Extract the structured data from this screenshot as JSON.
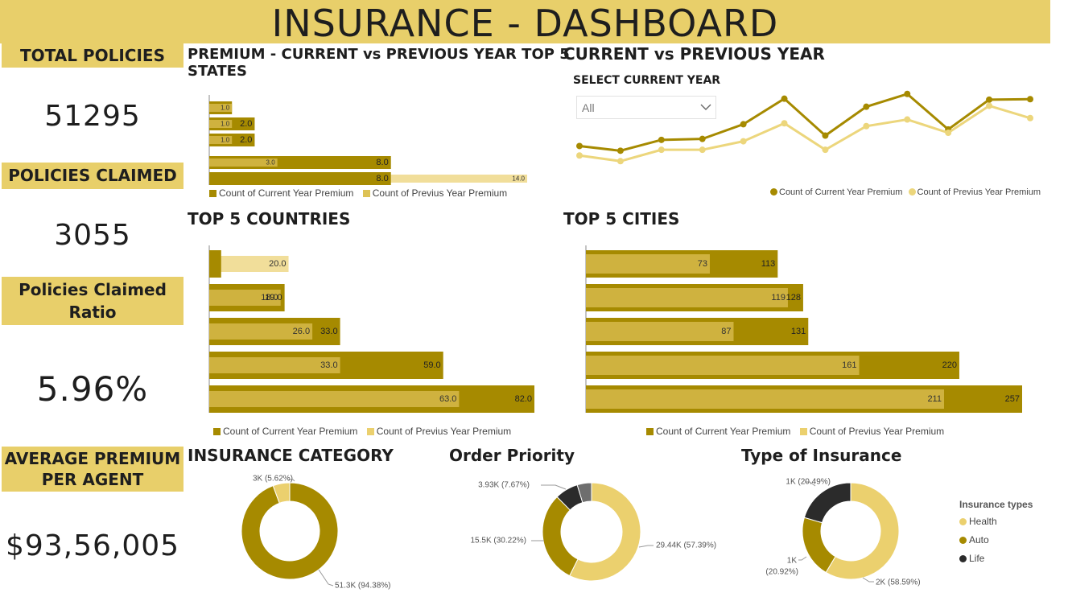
{
  "header": {
    "title": "INSURANCE - DASHBOARD"
  },
  "kpis": {
    "total_policies": {
      "label": "TOTAL POLICIES",
      "value": "51295"
    },
    "policies_claimed": {
      "label": "POLICIES CLAIMED",
      "value": "3055"
    },
    "claimed_ratio": {
      "label_line1": "Policies Claimed",
      "label_line2": "Ratio",
      "value": "5.96%"
    },
    "avg_premium": {
      "label_line1": "AVERAGE PREMIUM",
      "label_line2": "PER AGENT",
      "value": "$93,56,005"
    }
  },
  "sections": {
    "top5_states_title_1": "PREMIUM - CURRENT vs PREVIOUS YEAR TOP 5",
    "top5_states_title_2": "STATES",
    "line_title": "CURRENT vs PREVIOUS YEAR",
    "countries_title": "TOP 5 COUNTRIES",
    "cities_title": "TOP 5 CITIES",
    "category_title": "INSURANCE CATEGORY",
    "priority_title": "Order Priority",
    "type_title": "Type of Insurance"
  },
  "slicer": {
    "label": "SELECT CURRENT YEAR",
    "value": "All"
  },
  "legends": {
    "current": "Count of Current Year Premium",
    "previous": "Count of Previus Year Premium",
    "previous_line": "Count of Previus  Year Premium",
    "types_header": "Insurance types",
    "types": [
      "Health",
      "Auto",
      "Life"
    ]
  },
  "colors": {
    "title_bg": "#e8cf6a",
    "current": "#a68a00",
    "previous_in_bar": "#cfb23f",
    "previous": "#f1de9a",
    "line_current": "#a68a00",
    "line_previous": "#ecd67c",
    "health": "#ebd06e",
    "auto": "#a68a00",
    "life": "#2b2b2b",
    "other": "#6e6e6e"
  },
  "chart_data": [
    {
      "id": "top5_states",
      "type": "bar",
      "orientation": "horizontal",
      "series": [
        {
          "name": "Count of Current Year Premium",
          "values": [
            1.0,
            2.0,
            2.0,
            8.0,
            8.0
          ]
        },
        {
          "name": "Count of Previus Year Premium",
          "values": [
            1.0,
            1.0,
            1.0,
            3.0,
            14.0
          ]
        }
      ],
      "current_labels": [
        "",
        "2.0",
        "2.0",
        "8.0",
        "8.0"
      ],
      "previous_labels": [
        "1.0",
        "1.0",
        "1.0",
        "3.0",
        "14.0"
      ],
      "xlim": [
        0,
        14
      ]
    },
    {
      "id": "current_vs_previous",
      "type": "line",
      "series": [
        {
          "name": "Count of Current Year Premium",
          "values": [
            4.0,
            3.0,
            5.3,
            5.5,
            8.6,
            14.0,
            6.2,
            12.3,
            15.0,
            7.5,
            13.8,
            13.9
          ]
        },
        {
          "name": "Count of Previus  Year Premium",
          "values": [
            2.0,
            0.8,
            3.2,
            3.2,
            5.0,
            8.8,
            3.2,
            8.2,
            9.6,
            6.8,
            12.5,
            9.9
          ]
        }
      ],
      "ylim": [
        0,
        17
      ]
    },
    {
      "id": "top5_countries",
      "type": "bar",
      "orientation": "horizontal",
      "series": [
        {
          "name": "Count of Current Year Premium",
          "values": [
            3.0,
            19.0,
            33.0,
            59.0,
            82.0
          ]
        },
        {
          "name": "Count of Previus Year Premium",
          "values": [
            20.0,
            18.0,
            26.0,
            33.0,
            63.0
          ]
        }
      ],
      "current_labels": [
        "",
        "19.0",
        "33.0",
        "59.0",
        "82.0"
      ],
      "previous_labels": [
        "20.0",
        "18.0",
        "26.0",
        "33.0",
        "63.0"
      ],
      "xlim": [
        0,
        82
      ]
    },
    {
      "id": "top5_cities",
      "type": "bar",
      "orientation": "horizontal",
      "series": [
        {
          "name": "Count of Current Year Premium",
          "values": [
            113,
            128,
            131,
            220,
            257
          ]
        },
        {
          "name": "Count of Previus Year Premium",
          "values": [
            73,
            119,
            87,
            161,
            211
          ]
        }
      ],
      "xlim": [
        0,
        257
      ]
    },
    {
      "id": "insurance_category",
      "type": "pie",
      "hole": true,
      "slices": [
        {
          "value": 94.38,
          "label": "51.3K (94.38%)"
        },
        {
          "value": 5.62,
          "label": "3K (5.62%)"
        }
      ]
    },
    {
      "id": "order_priority",
      "type": "pie",
      "hole": true,
      "slices": [
        {
          "value": 57.39,
          "label": "29.44K (57.39%)"
        },
        {
          "value": 30.22,
          "label": "15.5K (30.22%)"
        },
        {
          "value": 7.67,
          "label": "3.93K (7.67%)"
        },
        {
          "value": 4.72,
          "label": ""
        }
      ]
    },
    {
      "id": "type_of_insurance",
      "type": "pie",
      "hole": true,
      "slices": [
        {
          "name": "Health",
          "value": 58.59,
          "label": "2K (58.59%)"
        },
        {
          "name": "Auto",
          "value": 20.92,
          "label_line1": "1K",
          "label_line2": "(20.92%)"
        },
        {
          "name": "Life",
          "value": 20.49,
          "label": "1K (20.49%)"
        }
      ]
    }
  ]
}
